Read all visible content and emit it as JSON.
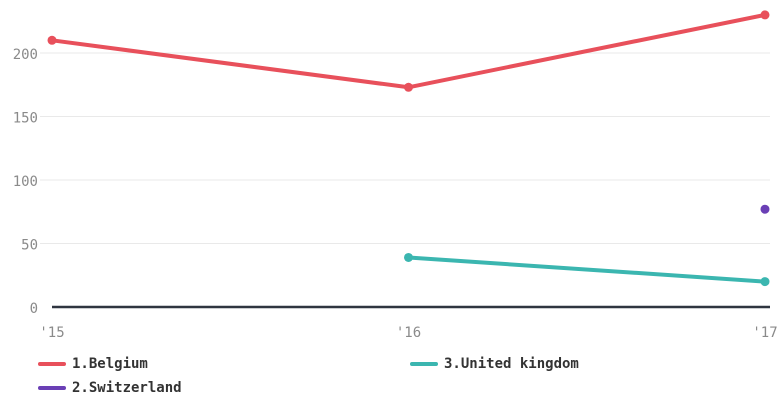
{
  "chart_data": {
    "type": "line",
    "categories": [
      "'15",
      "'16",
      "'17"
    ],
    "ylim": [
      0,
      230
    ],
    "yticks": [
      0,
      50,
      100,
      150,
      200
    ],
    "grid": true,
    "legend_position": "bottom",
    "series": [
      {
        "name": "1.Belgium",
        "color": "#e8505b",
        "values": [
          210,
          173,
          230
        ]
      },
      {
        "name": "3.United kingdom",
        "color": "#3bb6b0",
        "values": [
          null,
          39,
          20
        ]
      },
      {
        "name": "2.Switzerland",
        "color": "#6a3fb5",
        "values": [
          null,
          null,
          77
        ]
      }
    ]
  }
}
